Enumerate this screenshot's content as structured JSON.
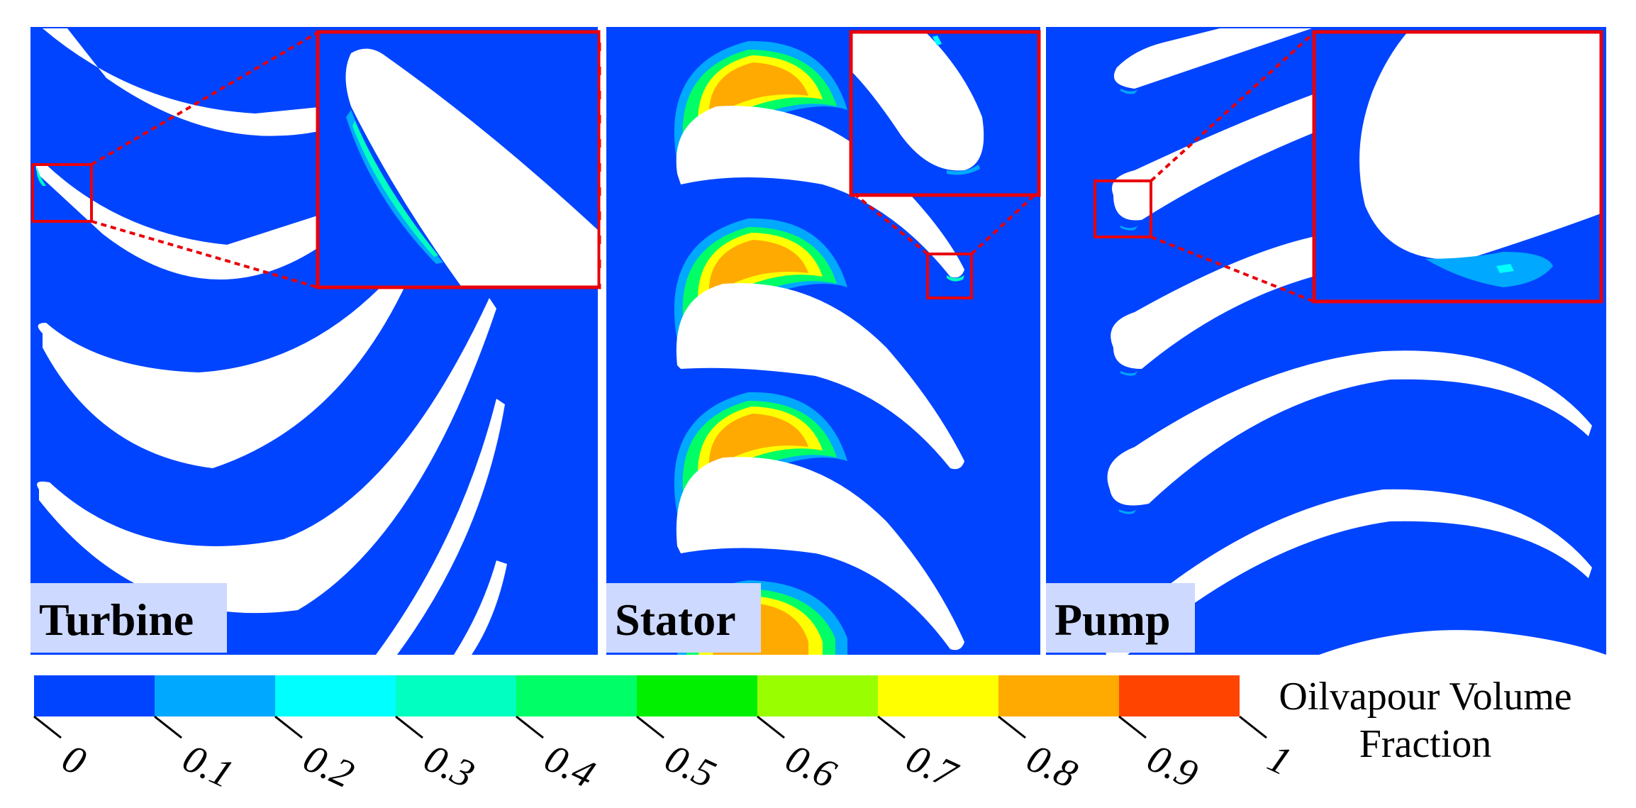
{
  "figure": {
    "panels": [
      {
        "id": "turbine",
        "label": "Turbine"
      },
      {
        "id": "stator",
        "label": "Stator"
      },
      {
        "id": "pump",
        "label": "Pump"
      }
    ],
    "colorbar": {
      "title_line1": "Oilvapour Volume",
      "title_line2": "Fraction",
      "ticks": [
        "0",
        "0.1",
        "0.2",
        "0.3",
        "0.4",
        "0.5",
        "0.6",
        "0.7",
        "0.8",
        "0.9",
        "1"
      ],
      "colors": [
        "#0044ff",
        "#00a8ff",
        "#00ffff",
        "#00ffc0",
        "#00ff66",
        "#00f000",
        "#99ff00",
        "#ffff00",
        "#ffaa00",
        "#ff4400"
      ]
    },
    "colors": {
      "background_field": "#0044ff",
      "blade": "#ffffff",
      "highlight_box": "#e8000b",
      "label_background": "#cdd9ff"
    }
  }
}
